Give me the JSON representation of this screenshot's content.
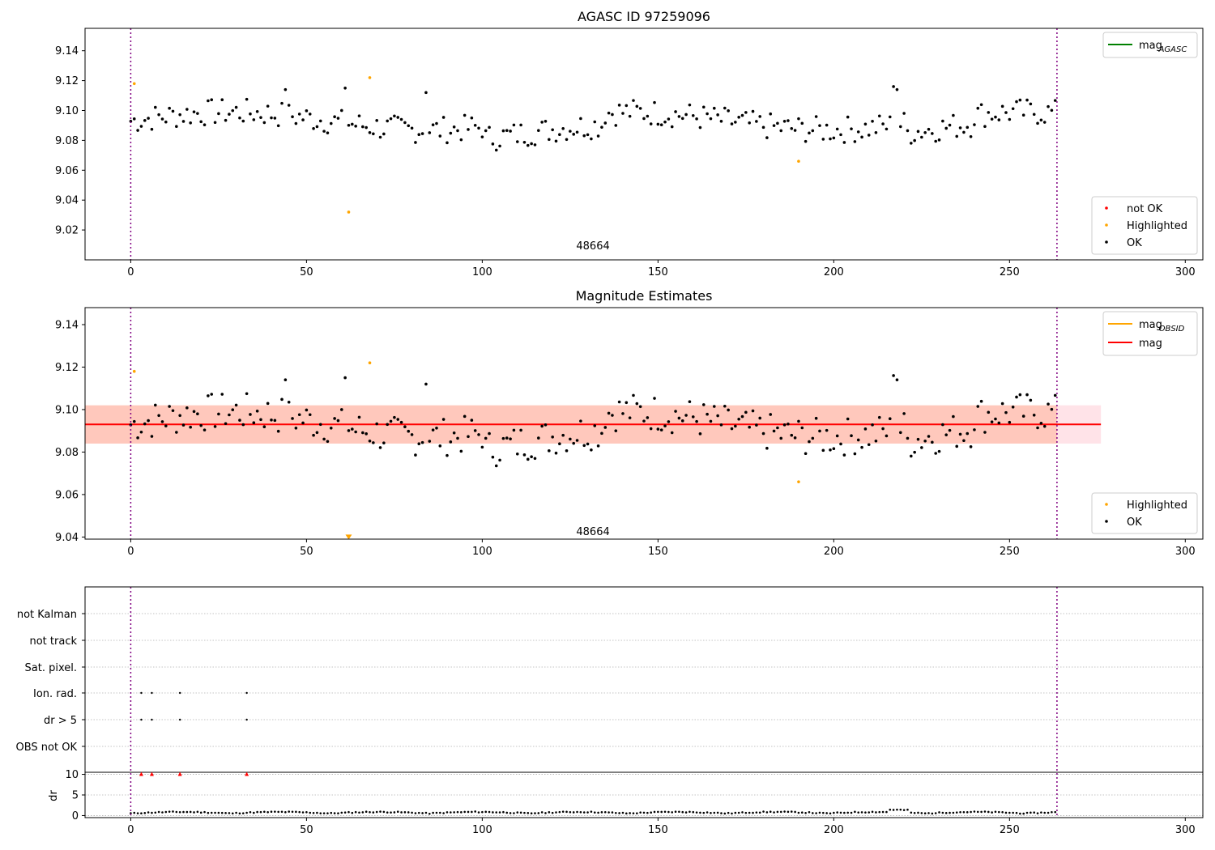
{
  "chart_data": [
    {
      "type": "scatter",
      "title": "AGASC ID 97259096",
      "xlim": [
        -13,
        305
      ],
      "ylim": [
        9.0,
        9.155
      ],
      "xticks": [
        0,
        50,
        100,
        150,
        200,
        250,
        300
      ],
      "yticks": [
        9.02,
        9.04,
        9.06,
        9.08,
        9.1,
        9.12,
        9.14
      ],
      "vlines": [
        0,
        263.5
      ],
      "obsid_label": {
        "text": "48664",
        "x": 131.5,
        "y": 9.007
      },
      "legend_top": [
        {
          "label": "mag",
          "sub": "AGASC",
          "color": "#008000"
        }
      ],
      "legend_bottom": [
        {
          "label": "not OK",
          "color": "#ff0000"
        },
        {
          "label": "Highlighted",
          "color": "#ffa500"
        },
        {
          "label": "OK",
          "color": "#000000"
        }
      ],
      "series": [
        {
          "name": "not OK",
          "color": "#ff0000",
          "points": []
        },
        {
          "name": "Highlighted",
          "color": "#ffa500",
          "points": [
            [
              1,
              9.118
            ],
            [
              62,
              9.032
            ],
            [
              68,
              9.122
            ],
            [
              190,
              9.066
            ]
          ]
        },
        {
          "name": "OK",
          "color": "#000000",
          "seed": 7,
          "n": 264,
          "base": 9.093,
          "band": 0.009
        }
      ]
    },
    {
      "type": "scatter",
      "title": "Magnitude Estimates",
      "xlim": [
        -13,
        305
      ],
      "ylim": [
        9.039,
        9.148
      ],
      "xticks": [
        0,
        50,
        100,
        150,
        200,
        250,
        300
      ],
      "yticks": [
        9.04,
        9.06,
        9.08,
        9.1,
        9.12,
        9.14
      ],
      "vlines": [
        0,
        263.5
      ],
      "obsid_label": {
        "text": "48664",
        "x": 131.5,
        "y": 9.041
      },
      "mag_line": {
        "y": 9.093,
        "x0": -13,
        "x1": 276,
        "color": "#ff0000"
      },
      "mag_band": {
        "y0": 9.084,
        "y1": 9.102,
        "color": "#ffc0cb"
      },
      "obsid_band": {
        "x0": -13,
        "x1": 263.5,
        "y0": 9.084,
        "y1": 9.102,
        "color": "#ffa07a"
      },
      "legend_top": [
        {
          "label": "mag",
          "sub": "OBSID",
          "color": "#ffa500"
        },
        {
          "label": "mag",
          "sub": "",
          "color": "#ff0000"
        }
      ],
      "legend_bottom": [
        {
          "label": "Highlighted",
          "color": "#ffa500"
        },
        {
          "label": "OK",
          "color": "#000000"
        }
      ],
      "series": [
        {
          "name": "Highlighted",
          "color": "#ffa500",
          "points": [
            [
              1,
              9.118
            ],
            [
              68,
              9.122
            ],
            [
              190,
              9.066
            ]
          ]
        },
        {
          "name": "OK",
          "color": "#000000",
          "seed": 7,
          "n": 264,
          "base": 9.093,
          "band": 0.009
        }
      ],
      "clipped_marker": {
        "x": 62,
        "y": 9.04,
        "color": "#ffa500"
      }
    },
    {
      "type": "scatter",
      "xlim": [
        -13,
        305
      ],
      "flag_labels": [
        "not Kalman",
        "not track",
        "Sat. pixel.",
        "Ion. rad.",
        "dr > 5",
        "OBS not OK"
      ],
      "flag_points": {
        "Ion. rad.": [
          3,
          6,
          14,
          33
        ],
        "dr > 5": [
          3,
          6,
          14,
          33
        ]
      },
      "dr_ylabel": "dr",
      "dr_yticks": [
        0,
        5,
        10
      ],
      "dr_ylim": [
        -0.5,
        10.5
      ],
      "dr_clip_markers": [
        3,
        6,
        14,
        33
      ],
      "xticks": [
        0,
        50,
        100,
        150,
        200,
        250,
        300
      ],
      "vlines": [
        0,
        263.5
      ]
    }
  ]
}
